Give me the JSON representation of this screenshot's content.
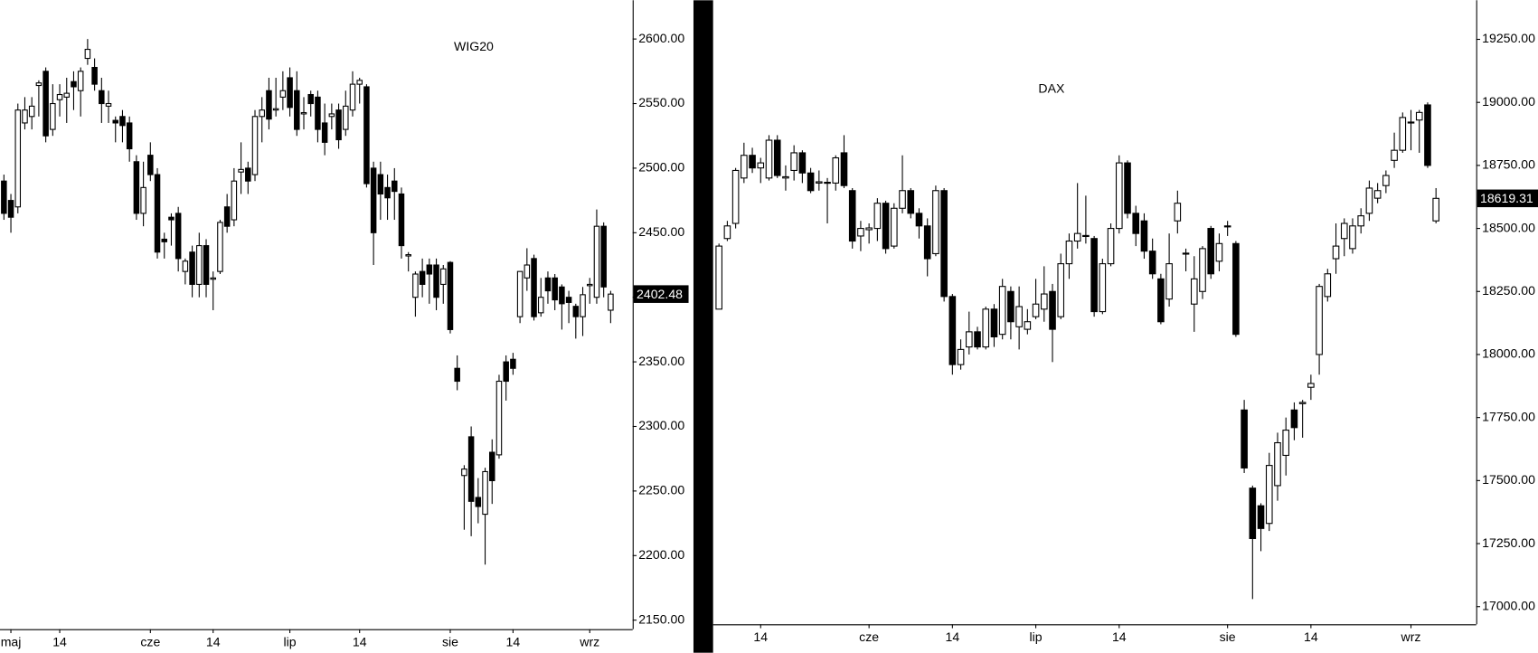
{
  "chart_data": [
    {
      "type": "candlestick",
      "title": "WIG20",
      "categories": [
        null,
        "maj",
        null,
        null,
        null,
        null,
        null,
        null,
        "14",
        null,
        null,
        null,
        null,
        null,
        null,
        null,
        null,
        null,
        null,
        null,
        null,
        "cze",
        null,
        null,
        null,
        null,
        null,
        null,
        null,
        null,
        "14",
        null,
        null,
        null,
        null,
        null,
        null,
        null,
        null,
        null,
        null,
        "lip",
        null,
        null,
        null,
        null,
        null,
        null,
        null,
        null,
        null,
        "14",
        null,
        null,
        null,
        null,
        null,
        null,
        null,
        null,
        null,
        null,
        null,
        null,
        "sie",
        null,
        null,
        null,
        null,
        null,
        null,
        null,
        null,
        "14",
        null,
        null,
        null,
        null,
        null,
        null,
        null,
        null,
        null,
        null,
        "wrz",
        null,
        null,
        null
      ],
      "open": [
        2490,
        2475,
        2470,
        2535,
        2540,
        2564,
        2575,
        2530,
        2553,
        2555,
        2567,
        2560,
        2585,
        2578,
        2560,
        2548,
        2537,
        2540,
        2535,
        2505,
        2465,
        2510,
        2495,
        2445,
        2462,
        2465,
        2420,
        2435,
        2410,
        2440,
        2414,
        2420,
        2470,
        2460,
        2497,
        2500,
        2495,
        2540,
        2560,
        2545,
        2555,
        2570,
        2560,
        2542,
        2557,
        2555,
        2535,
        2540,
        2545,
        2530,
        2545,
        2565,
        2563,
        2500,
        2495,
        2485,
        2490,
        2480,
        2432,
        2400,
        2420,
        2425,
        2425,
        2410,
        2427,
        2345,
        2262,
        2292,
        2245,
        2232,
        2280,
        2278,
        2350,
        2352,
        2385,
        2415,
        2430,
        2388,
        2415,
        2415,
        2408,
        2400,
        2393,
        2385,
        2409,
        2400,
        2455,
        2390
      ],
      "high": [
        2495,
        2480,
        2550,
        2555,
        2555,
        2568,
        2578,
        2565,
        2565,
        2570,
        2575,
        2578,
        2600,
        2585,
        2570,
        2560,
        2540,
        2545,
        2540,
        2510,
        2505,
        2520,
        2500,
        2450,
        2465,
        2470,
        2430,
        2440,
        2450,
        2445,
        2420,
        2460,
        2480,
        2500,
        2520,
        2505,
        2545,
        2555,
        2570,
        2570,
        2575,
        2578,
        2575,
        2555,
        2560,
        2560,
        2550,
        2550,
        2550,
        2560,
        2575,
        2570,
        2565,
        2505,
        2505,
        2495,
        2500,
        2485,
        2435,
        2420,
        2430,
        2430,
        2430,
        2425,
        2428,
        2355,
        2270,
        2300,
        2260,
        2268,
        2290,
        2340,
        2355,
        2357,
        2420,
        2438,
        2433,
        2415,
        2420,
        2418,
        2410,
        2405,
        2395,
        2408,
        2415,
        2468,
        2458,
        2405
      ],
      "low": [
        2460,
        2450,
        2465,
        2530,
        2530,
        2540,
        2520,
        2525,
        2540,
        2535,
        2545,
        2540,
        2580,
        2560,
        2535,
        2535,
        2520,
        2520,
        2505,
        2460,
        2455,
        2490,
        2430,
        2430,
        2440,
        2420,
        2410,
        2400,
        2400,
        2400,
        2390,
        2418,
        2450,
        2455,
        2480,
        2480,
        2490,
        2520,
        2530,
        2540,
        2545,
        2540,
        2525,
        2530,
        2540,
        2520,
        2510,
        2530,
        2515,
        2525,
        2540,
        2550,
        2485,
        2425,
        2460,
        2460,
        2460,
        2430,
        2420,
        2385,
        2400,
        2395,
        2390,
        2395,
        2372,
        2328,
        2220,
        2215,
        2225,
        2193,
        2240,
        2275,
        2320,
        2340,
        2380,
        2405,
        2382,
        2385,
        2395,
        2390,
        2375,
        2380,
        2368,
        2370,
        2395,
        2395,
        2400,
        2380
      ],
      "close": [
        2465,
        2462,
        2545,
        2545,
        2548,
        2566,
        2525,
        2550,
        2557,
        2558,
        2563,
        2575,
        2592,
        2565,
        2550,
        2550,
        2535,
        2533,
        2515,
        2465,
        2485,
        2495,
        2435,
        2443,
        2460,
        2430,
        2428,
        2410,
        2440,
        2410,
        2415,
        2458,
        2455,
        2490,
        2499,
        2490,
        2540,
        2545,
        2538,
        2546,
        2560,
        2547,
        2530,
        2543,
        2550,
        2530,
        2520,
        2542,
        2522,
        2548,
        2565,
        2568,
        2488,
        2450,
        2480,
        2477,
        2482,
        2440,
        2433,
        2418,
        2410,
        2418,
        2400,
        2422,
        2375,
        2335,
        2267,
        2242,
        2238,
        2265,
        2258,
        2335,
        2335,
        2345,
        2420,
        2425,
        2385,
        2400,
        2405,
        2398,
        2395,
        2396,
        2385,
        2402,
        2410,
        2455,
        2408,
        2402.48
      ],
      "up_color": "#ffffff",
      "down_color": "#000000",
      "ylim": [
        2143,
        2630
      ],
      "yticks": [
        {
          "value": 2150,
          "label": "2150.00"
        },
        {
          "value": 2200,
          "label": "2200.00"
        },
        {
          "value": 2250,
          "label": "2250.00"
        },
        {
          "value": 2300,
          "label": "2300.00"
        },
        {
          "value": 2350,
          "label": "2350.00"
        },
        {
          "value": 2400,
          "label": "2400.00"
        },
        {
          "value": 2450,
          "label": "2450.00"
        },
        {
          "value": 2500,
          "label": "2500.00"
        },
        {
          "value": 2550,
          "label": "2550.00"
        },
        {
          "value": 2600,
          "label": "2600.00"
        }
      ],
      "last_value": 2402.48
    },
    {
      "type": "candlestick",
      "title": "DAX",
      "categories": [
        null,
        null,
        null,
        null,
        null,
        "14",
        null,
        null,
        null,
        null,
        null,
        null,
        null,
        null,
        null,
        null,
        null,
        null,
        "cze",
        null,
        null,
        null,
        null,
        null,
        null,
        null,
        null,
        null,
        "14",
        null,
        null,
        null,
        null,
        null,
        null,
        null,
        null,
        null,
        "lip",
        null,
        null,
        null,
        null,
        null,
        null,
        null,
        null,
        null,
        "14",
        null,
        null,
        null,
        null,
        null,
        null,
        null,
        null,
        null,
        null,
        null,
        null,
        "sie",
        null,
        null,
        null,
        null,
        null,
        null,
        null,
        null,
        null,
        "14",
        null,
        null,
        null,
        null,
        null,
        null,
        null,
        null,
        null,
        null,
        null,
        "wrz",
        null,
        null,
        null
      ],
      "open": [
        18180,
        18460,
        18520,
        18700,
        18790,
        18740,
        18700,
        18850,
        18700,
        18730,
        18800,
        18720,
        18680,
        18680,
        18680,
        18800,
        18650,
        18470,
        18495,
        18500,
        18600,
        18430,
        18580,
        18650,
        18560,
        18510,
        18400,
        18650,
        18230,
        17960,
        18030,
        18090,
        18030,
        18180,
        18080,
        18250,
        18110,
        18100,
        18150,
        18180,
        18250,
        18150,
        18360,
        18450,
        18470,
        18460,
        18170,
        18360,
        18500,
        18760,
        18560,
        18530,
        18410,
        18300,
        18220,
        18530,
        18400,
        18200,
        18250,
        18500,
        18370,
        18508,
        18440,
        17780,
        17470,
        17400,
        17330,
        17480,
        17600,
        17780,
        17805,
        17870,
        18000,
        18230,
        18380,
        18460,
        18420,
        18510,
        18560,
        18620,
        18670,
        18770,
        18810,
        18920,
        18930,
        18990,
        18530
      ],
      "high": [
        18440,
        18530,
        18740,
        18840,
        18820,
        18780,
        18870,
        18870,
        18750,
        18830,
        18810,
        18740,
        18730,
        18700,
        18790,
        18870,
        18660,
        18530,
        18520,
        18620,
        18610,
        18600,
        18790,
        18660,
        18580,
        18540,
        18670,
        18660,
        18240,
        18060,
        18170,
        18110,
        18190,
        18200,
        18300,
        18270,
        18270,
        18180,
        18300,
        18350,
        18280,
        18400,
        18480,
        18680,
        18630,
        18470,
        18380,
        18520,
        18790,
        18770,
        18590,
        18560,
        18460,
        18320,
        18480,
        18650,
        18420,
        18390,
        18430,
        18510,
        18480,
        18530,
        18450,
        17820,
        17480,
        17410,
        17610,
        17690,
        17750,
        17810,
        17820,
        17920,
        18280,
        18340,
        18520,
        18540,
        18540,
        18580,
        18690,
        18680,
        18730,
        18880,
        18960,
        18970,
        18970,
        19000,
        18660
      ],
      "low": [
        18180,
        18450,
        18500,
        18680,
        18720,
        18680,
        18690,
        18700,
        18650,
        18690,
        18680,
        18640,
        18650,
        18520,
        18650,
        18660,
        18420,
        18410,
        18440,
        18450,
        18400,
        18420,
        18560,
        18540,
        18460,
        18310,
        18390,
        18210,
        17920,
        17940,
        18000,
        18020,
        18020,
        18030,
        18060,
        18060,
        18020,
        18080,
        18140,
        18130,
        17970,
        18140,
        18300,
        18420,
        18440,
        18150,
        18160,
        18350,
        18480,
        18540,
        18430,
        18380,
        18300,
        18120,
        18190,
        18480,
        18330,
        18090,
        18220,
        18300,
        18330,
        18470,
        18070,
        17530,
        17030,
        17220,
        17300,
        17420,
        17520,
        17660,
        17670,
        17820,
        17920,
        18210,
        18320,
        18390,
        18400,
        18480,
        18530,
        18600,
        18640,
        18740,
        18800,
        18810,
        18800,
        18740,
        18520
      ],
      "close": [
        18430,
        18510,
        18730,
        18790,
        18740,
        18760,
        18850,
        18710,
        18705,
        18800,
        18720,
        18650,
        18685,
        18683,
        18780,
        18670,
        18450,
        18500,
        18502,
        18600,
        18420,
        18580,
        18650,
        18560,
        18510,
        18380,
        18650,
        18230,
        17960,
        18020,
        18090,
        18030,
        18180,
        18070,
        18270,
        18130,
        18190,
        18130,
        18200,
        18240,
        18100,
        18360,
        18450,
        18480,
        18472,
        18170,
        18360,
        18500,
        18760,
        18560,
        18480,
        18410,
        18320,
        18130,
        18360,
        18600,
        18402,
        18300,
        18420,
        18320,
        18440,
        18510,
        18080,
        17550,
        17270,
        17310,
        17560,
        17650,
        17700,
        17710,
        17810,
        17885,
        18270,
        18320,
        18430,
        18520,
        18510,
        18550,
        18660,
        18650,
        18710,
        18810,
        18940,
        18922,
        18960,
        18750,
        18619.31
      ],
      "up_color": "#ffffff",
      "down_color": "#000000",
      "ylim": [
        16930,
        19405
      ],
      "yticks": [
        {
          "value": 17000,
          "label": "17000.00"
        },
        {
          "value": 17250,
          "label": "17250.00"
        },
        {
          "value": 17500,
          "label": "17500.00"
        },
        {
          "value": 17750,
          "label": "17750.00"
        },
        {
          "value": 18000,
          "label": "18000.00"
        },
        {
          "value": 18250,
          "label": "18250.00"
        },
        {
          "value": 18500,
          "label": "18500.00"
        },
        {
          "value": 18750,
          "label": "18750.00"
        },
        {
          "value": 19000,
          "label": "19000.00"
        },
        {
          "value": 19250,
          "label": "19250.00"
        }
      ],
      "last_value": 18619.31
    }
  ]
}
